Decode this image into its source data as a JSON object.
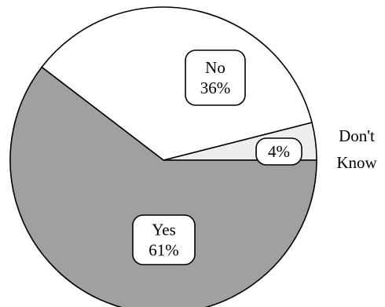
{
  "chart_data": {
    "type": "pie",
    "slices": [
      {
        "label": "Yes",
        "value": 61,
        "value_label": "61%",
        "color": "#a0a0a0"
      },
      {
        "label": "No",
        "value": 36,
        "value_label": "36%",
        "color": "#ffffff"
      },
      {
        "label": "Don't Know",
        "label_lines": [
          "Don't",
          "Know"
        ],
        "value": 4,
        "value_label": "4%",
        "color": "#eeeeee"
      }
    ],
    "legend": "none"
  }
}
